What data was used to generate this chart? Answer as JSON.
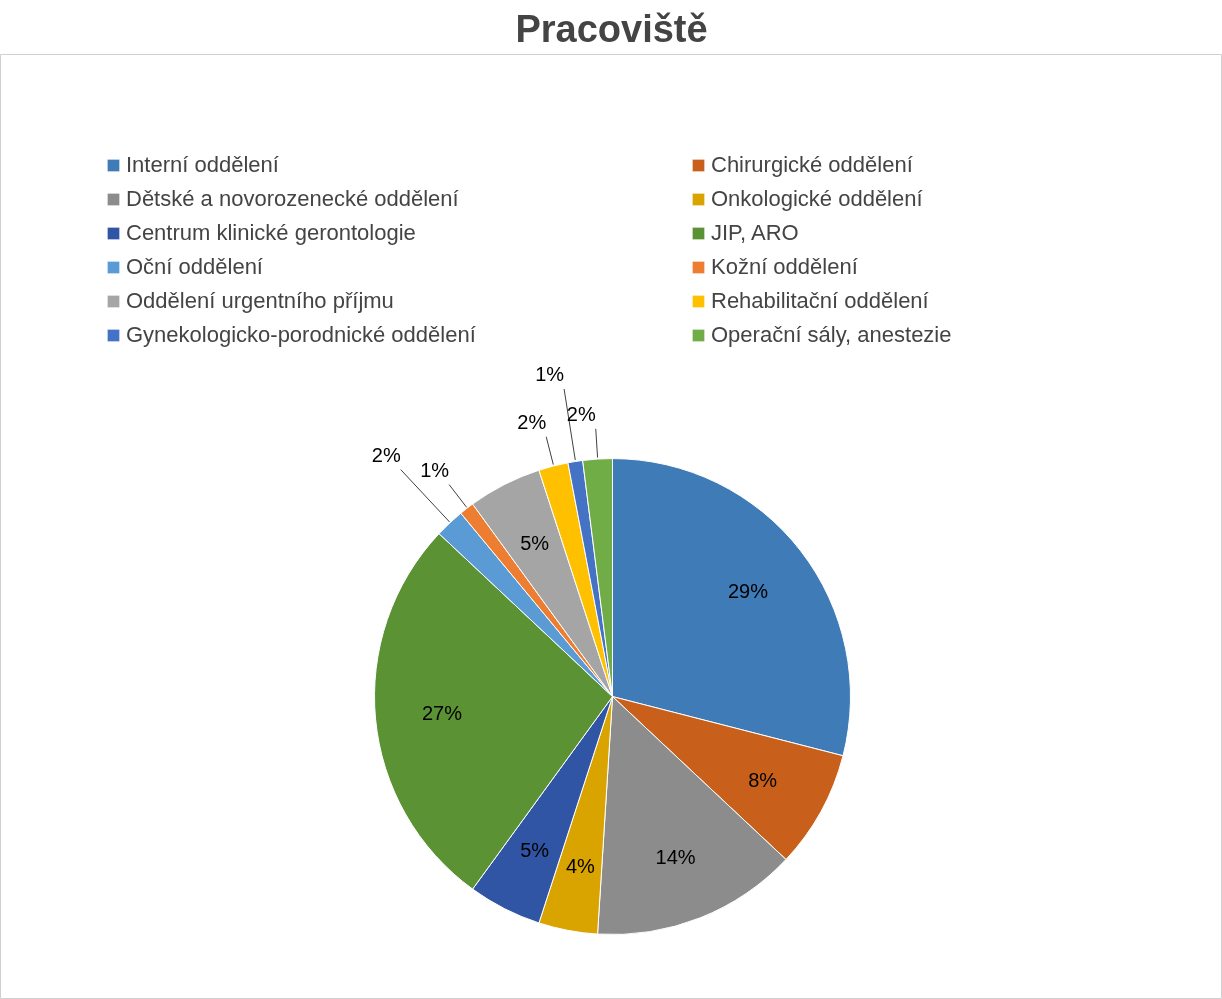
{
  "chart_data": {
    "type": "pie",
    "title": "Pracoviště",
    "categories": [
      "Interní oddělení",
      "Chirurgické oddělení",
      "Dětské a novorozenecké oddělení",
      "Onkologické oddělení",
      "Centrum klinické gerontologie",
      "JIP, ARO",
      "Oční oddělení",
      "Kožní oddělení",
      "Oddělení urgentního příjmu",
      "Rehabilitační oddělení",
      "Gynekologicko-porodnické oddělení",
      "Operační sály, anestezie"
    ],
    "values": [
      29,
      8,
      14,
      4,
      5,
      27,
      2,
      1,
      5,
      2,
      1,
      2
    ],
    "value_labels": [
      "29%",
      "8%",
      "14%",
      "4%",
      "5%",
      "27%",
      "2%",
      "1%",
      "5%",
      "2%",
      "1%",
      "2%"
    ],
    "colors": [
      "#3f7bb7",
      "#c8601c",
      "#8c8c8c",
      "#d9a300",
      "#2f55a4",
      "#5b9234",
      "#5b9bd5",
      "#ed7d31",
      "#a5a5a5",
      "#ffc000",
      "#4472c4",
      "#70ad47"
    ],
    "legend": "top"
  }
}
